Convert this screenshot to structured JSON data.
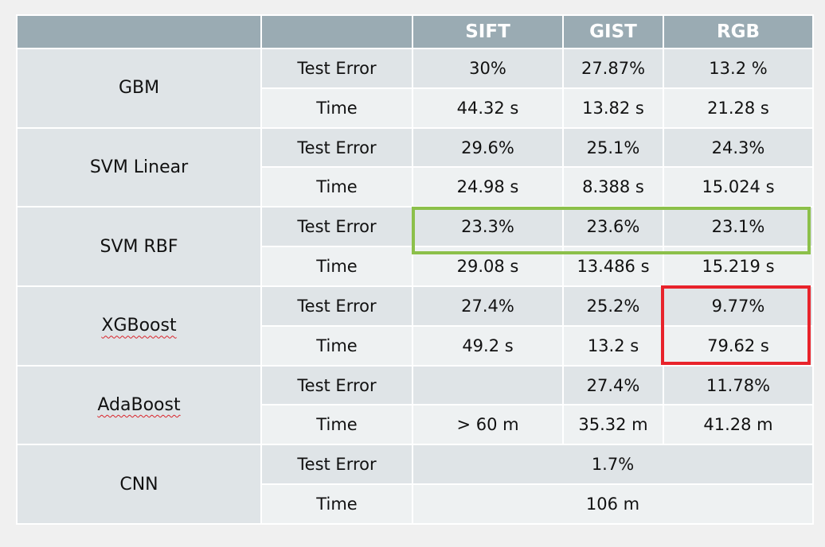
{
  "table": {
    "headers": [
      "",
      "",
      "SIFT",
      "GIST",
      "RGB"
    ],
    "models": [
      {
        "name": "GBM",
        "spell_flag": false,
        "rows": [
          {
            "metric": "Test Error",
            "values": [
              "30%",
              "27.87%",
              "13.2 %"
            ]
          },
          {
            "metric": "Time",
            "values": [
              "44.32 s",
              "13.82 s",
              "21.28 s"
            ]
          }
        ]
      },
      {
        "name": "SVM Linear",
        "spell_flag": false,
        "rows": [
          {
            "metric": "Test Error",
            "values": [
              "29.6%",
              "25.1%",
              "24.3%"
            ]
          },
          {
            "metric": "Time",
            "values": [
              "24.98 s",
              "8.388 s",
              "15.024 s"
            ]
          }
        ]
      },
      {
        "name": "SVM RBF",
        "spell_flag": false,
        "rows": [
          {
            "metric": "Test Error",
            "values": [
              "23.3%",
              "23.6%",
              "23.1%"
            ]
          },
          {
            "metric": "Time",
            "values": [
              "29.08 s",
              "13.486 s",
              "15.219 s"
            ]
          }
        ]
      },
      {
        "name": "XGBoost",
        "spell_flag": true,
        "rows": [
          {
            "metric": "Test Error",
            "values": [
              "27.4%",
              "25.2%",
              "9.77%"
            ]
          },
          {
            "metric": "Time",
            "values": [
              "49.2 s",
              "13.2 s",
              "79.62 s"
            ]
          }
        ]
      },
      {
        "name": "AdaBoost",
        "spell_flag": true,
        "rows": [
          {
            "metric": "Test Error",
            "values": [
              "",
              "27.4%",
              "11.78%"
            ]
          },
          {
            "metric": "Time",
            "values": [
              "> 60 m",
              "35.32 m",
              "41.28 m"
            ]
          }
        ]
      },
      {
        "name": "CNN",
        "spell_flag": false,
        "rows": [
          {
            "metric": "Test Error",
            "merged_value": "1.7%"
          },
          {
            "metric": "Time",
            "merged_value": "106 m"
          }
        ]
      }
    ]
  },
  "highlights": {
    "green_color": "#8cc04a",
    "red_color": "#e8232b"
  }
}
